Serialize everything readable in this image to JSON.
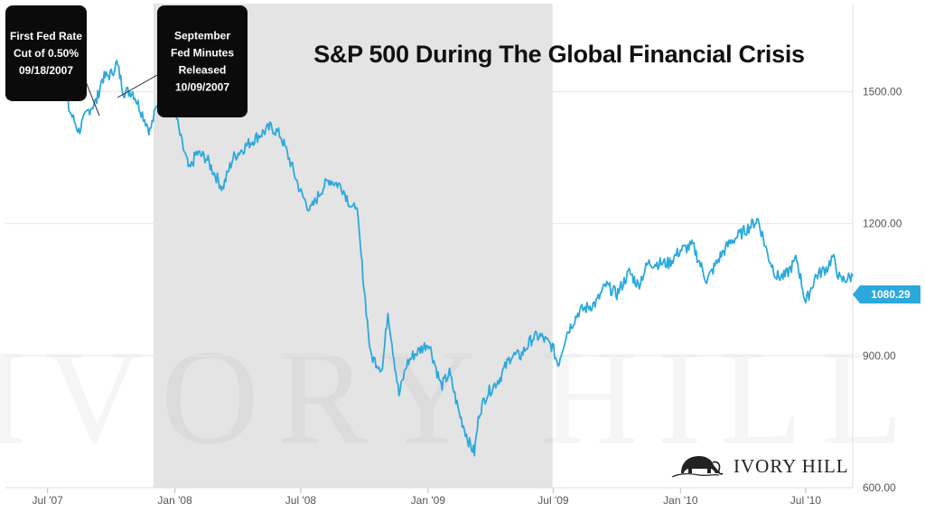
{
  "chart_data": {
    "type": "line",
    "title": "S&P 500 During The Global Financial Crisis",
    "x_range": [
      "2007-05-01",
      "2010-09-07"
    ],
    "ylim": [
      600,
      1700
    ],
    "y_ticks": [
      600,
      900,
      1200,
      1500
    ],
    "y_tick_labels": [
      "600.00",
      "900.00",
      "1200.00",
      "1500.00"
    ],
    "x_ticks": [
      "2007-07-01",
      "2008-01-01",
      "2008-07-01",
      "2009-01-01",
      "2009-07-01",
      "2010-01-01",
      "2010-07-01"
    ],
    "x_tick_labels": [
      "Jul '07",
      "Jan '08",
      "Jul '08",
      "Jan '09",
      "Jul '09",
      "Jan '10",
      "Jul '10"
    ],
    "shaded_region": [
      "2007-12-01",
      "2009-06-30"
    ],
    "line_color": "#2ca9dc",
    "last_value_label": "1080.29",
    "last_value": 1080.29,
    "grid": "horizontal",
    "series": [
      {
        "x": [
          "2007-05-01",
          "2007-05-15",
          "2007-06-01",
          "2007-06-15",
          "2007-07-01",
          "2007-07-10",
          "2007-07-19",
          "2007-08-01",
          "2007-08-15",
          "2007-08-28",
          "2007-09-10",
          "2007-09-18",
          "2007-10-01",
          "2007-10-09",
          "2007-10-19",
          "2007-11-01",
          "2007-11-15",
          "2007-11-26",
          "2007-12-10",
          "2007-12-20",
          "2008-01-02",
          "2008-01-10",
          "2008-01-22",
          "2008-02-01",
          "2008-02-15",
          "2008-03-10",
          "2008-03-25",
          "2008-04-15",
          "2008-05-01",
          "2008-05-19",
          "2008-06-02",
          "2008-06-16",
          "2008-07-01",
          "2008-07-15",
          "2008-08-01",
          "2008-08-11",
          "2008-08-29",
          "2008-09-15",
          "2008-09-19",
          "2008-09-29",
          "2008-10-10",
          "2008-10-27",
          "2008-11-04",
          "2008-11-20",
          "2008-12-01",
          "2008-12-10",
          "2009-01-02",
          "2009-01-20",
          "2009-02-01",
          "2009-02-15",
          "2009-03-02",
          "2009-03-09",
          "2009-03-16",
          "2009-03-26",
          "2009-04-15",
          "2009-05-01",
          "2009-05-15",
          "2009-06-01",
          "2009-06-12",
          "2009-06-30",
          "2009-07-08",
          "2009-07-20",
          "2009-08-07",
          "2009-09-01",
          "2009-09-15",
          "2009-10-01",
          "2009-10-19",
          "2009-11-01",
          "2009-11-15",
          "2009-12-01",
          "2009-12-15",
          "2010-01-01",
          "2010-01-19",
          "2010-02-08",
          "2010-03-01",
          "2010-03-15",
          "2010-04-01",
          "2010-04-23",
          "2010-05-07",
          "2010-05-20",
          "2010-06-01",
          "2010-06-18",
          "2010-07-01",
          "2010-07-15",
          "2010-08-01",
          "2010-08-09",
          "2010-08-20",
          "2010-09-07"
        ],
        "values": [
          1490,
          1510,
          1530,
          1505,
          1520,
          1550,
          1545,
          1460,
          1410,
          1455,
          1480,
          1530,
          1540,
          1565,
          1500,
          1500,
          1450,
          1410,
          1490,
          1470,
          1450,
          1390,
          1320,
          1360,
          1350,
          1280,
          1350,
          1380,
          1400,
          1420,
          1400,
          1340,
          1270,
          1230,
          1280,
          1300,
          1285,
          1230,
          1250,
          1080,
          900,
          870,
          1000,
          810,
          880,
          900,
          930,
          830,
          860,
          770,
          700,
          680,
          770,
          810,
          850,
          900,
          900,
          940,
          945,
          920,
          880,
          950,
          1000,
          1020,
          1060,
          1040,
          1090,
          1060,
          1110,
          1110,
          1110,
          1140,
          1150,
          1070,
          1130,
          1160,
          1180,
          1210,
          1130,
          1080,
          1080,
          1120,
          1020,
          1080,
          1100,
          1125,
          1070,
          1080.29
        ]
      }
    ],
    "annotations": [
      {
        "lines": [
          "First Fed Rate",
          "Cut of 0.50%",
          "09/18/2007"
        ],
        "date": "2007-09-18"
      },
      {
        "lines": [
          "September",
          "Fed Minutes",
          "Released",
          "10/09/2007"
        ],
        "date": "2007-10-09"
      }
    ]
  },
  "brand": {
    "name": "IVORY HILL"
  },
  "watermark": {
    "text": "IVORY HILL"
  }
}
